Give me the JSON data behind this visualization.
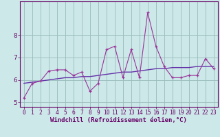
{
  "x": [
    0,
    1,
    2,
    3,
    4,
    5,
    6,
    7,
    8,
    9,
    10,
    11,
    12,
    13,
    14,
    15,
    16,
    17,
    18,
    19,
    20,
    21,
    22,
    23
  ],
  "y_data": [
    5.2,
    5.85,
    5.95,
    6.4,
    6.45,
    6.45,
    6.2,
    6.35,
    5.5,
    5.85,
    7.35,
    7.5,
    6.1,
    7.35,
    6.1,
    9.0,
    7.5,
    6.6,
    6.1,
    6.1,
    6.2,
    6.2,
    6.95,
    6.5
  ],
  "trend_y": [
    5.85,
    5.9,
    5.95,
    6.0,
    6.05,
    6.1,
    6.1,
    6.15,
    6.15,
    6.2,
    6.25,
    6.3,
    6.35,
    6.35,
    6.4,
    6.45,
    6.5,
    6.5,
    6.55,
    6.55,
    6.55,
    6.6,
    6.6,
    6.6
  ],
  "bg_color": "#cce8e8",
  "line_color": "#993399",
  "trend_color": "#6633aa",
  "grid_color": "#99bbbb",
  "xlabel": "Windchill (Refroidissement éolien,°C)",
  "axis_color": "#660066",
  "tick_color": "#660066",
  "ylim": [
    4.8,
    9.5
  ],
  "xlim": [
    -0.5,
    23.5
  ],
  "yticks": [
    5,
    6,
    7,
    8
  ],
  "xticks": [
    0,
    1,
    2,
    3,
    4,
    5,
    6,
    7,
    8,
    9,
    10,
    11,
    12,
    13,
    14,
    15,
    16,
    17,
    18,
    19,
    20,
    21,
    22,
    23
  ],
  "xlabel_fontsize": 6.5,
  "tick_fontsize": 5.8,
  "marker_size": 3.5
}
